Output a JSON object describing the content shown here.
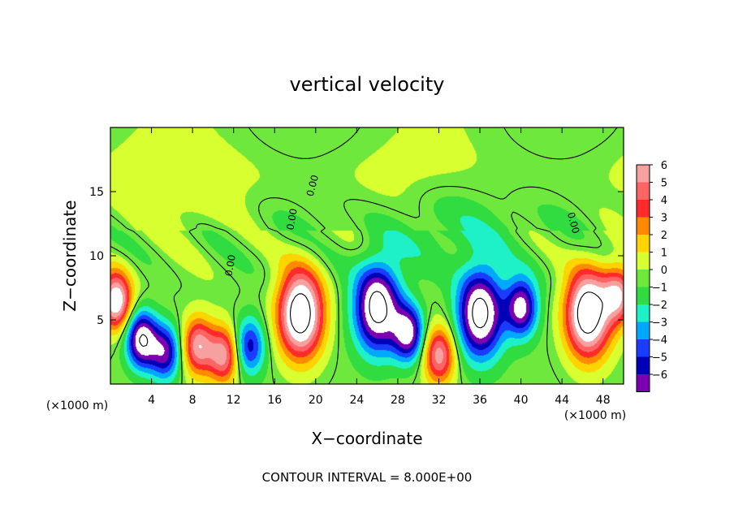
{
  "chart_data": {
    "type": "heatmap",
    "title": "vertical velocity",
    "xlabel": "X−coordinate",
    "ylabel": "Z−coordinate",
    "x_unit": "(×1000 m)",
    "xlim": [
      0,
      50
    ],
    "ylim": [
      0,
      20
    ],
    "xticks": [
      4,
      8,
      12,
      16,
      20,
      24,
      28,
      32,
      36,
      40,
      44,
      48
    ],
    "yticks": [
      5,
      10,
      15
    ],
    "colorbar": {
      "ticks": [
        6,
        5,
        4,
        3,
        2,
        1,
        0,
        -1,
        -2,
        -3,
        -4,
        -5,
        -6
      ],
      "colors": [
        "#f7a0a0",
        "#ff6464",
        "#ff2a2a",
        "#ff8a00",
        "#ffd400",
        "#d8ff30",
        "#6ee83c",
        "#30dc40",
        "#1ef0c8",
        "#00a8ff",
        "#1a3cff",
        "#0000b8",
        "#7a00b0"
      ]
    },
    "contour_interval_label": "CONTOUR INTERVAL = 8.000E+00",
    "contour_labels": [
      "0.00",
      "0.00",
      "0.00",
      "0.00"
    ],
    "features": [
      {
        "kind": "updraft",
        "x": 0.5,
        "z": 6.5,
        "peak": 8
      },
      {
        "kind": "downdraft",
        "x": 3,
        "z": 3.5,
        "peak": -8
      },
      {
        "kind": "downdraft",
        "x": 5.3,
        "z": 2.5,
        "peak": -6
      },
      {
        "kind": "updraft",
        "x": 8.5,
        "z": 3,
        "peak": 6
      },
      {
        "kind": "updraft",
        "x": 11,
        "z": 2.3,
        "peak": 6
      },
      {
        "kind": "downdraft",
        "x": 13.5,
        "z": 3,
        "peak": -5
      },
      {
        "kind": "updraft",
        "x": 18.5,
        "z": 5.5,
        "peak": 10
      },
      {
        "kind": "downdraft",
        "x": 26,
        "z": 6,
        "peak": -9
      },
      {
        "kind": "downdraft",
        "x": 29,
        "z": 4,
        "peak": -7
      },
      {
        "kind": "updraft",
        "x": 32,
        "z": 2.3,
        "peak": 6
      },
      {
        "kind": "downdraft",
        "x": 36,
        "z": 5.5,
        "peak": -9
      },
      {
        "kind": "downdraft",
        "x": 40,
        "z": 6,
        "peak": -7
      },
      {
        "kind": "updraft",
        "x": 46.5,
        "z": 5.5,
        "peak": 10
      },
      {
        "kind": "updraft",
        "x": 49.5,
        "z": 7,
        "peak": 6
      }
    ]
  }
}
